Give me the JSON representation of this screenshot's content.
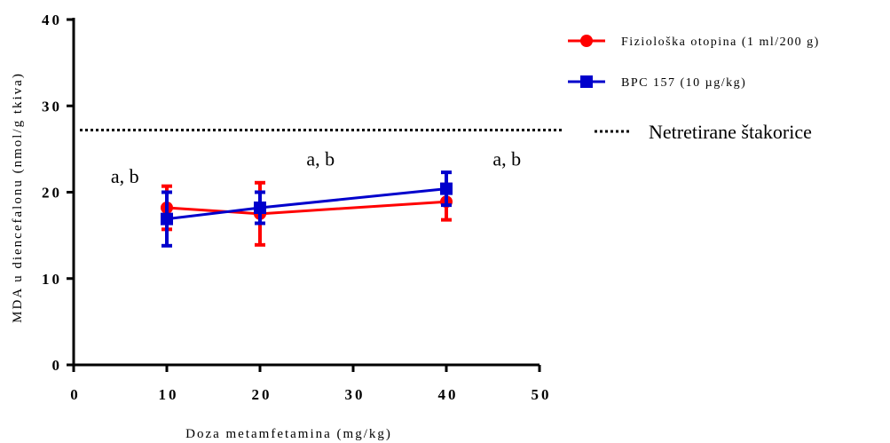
{
  "chart_data": {
    "type": "line",
    "title": "",
    "xlabel": "Doza metamfetamina (mg/kg)",
    "ylabel": "MDA u diencefalonu (nmol/g tkiva)",
    "xlim": [
      0,
      50
    ],
    "ylim": [
      0,
      40
    ],
    "xticks": [
      "0",
      "10",
      "20",
      "30",
      "40",
      "50"
    ],
    "yticks": [
      "0",
      "10",
      "20",
      "30",
      "40"
    ],
    "x": [
      10,
      20,
      40
    ],
    "series": [
      {
        "name": "Fiziološka otopina (1 ml/200 g)",
        "color": "#ff0000",
        "marker": "circle",
        "x": [
          10,
          20,
          40
        ],
        "values": [
          18.2,
          17.5,
          18.9
        ],
        "err_low": [
          15.7,
          13.9,
          16.8
        ],
        "err_high": [
          20.7,
          21.1,
          20.9
        ]
      },
      {
        "name": "BPC 157 (10 µg/kg)",
        "color": "#0000cc",
        "marker": "square",
        "x": [
          10,
          20,
          40
        ],
        "values": [
          16.9,
          18.2,
          20.4
        ],
        "err_low": [
          13.8,
          16.4,
          18.5
        ],
        "err_high": [
          20.0,
          20.0,
          22.3
        ]
      }
    ],
    "reference_line": {
      "label": "Netretirane štakorice",
      "value": 27.2,
      "style": "dotted"
    },
    "annotations": [
      {
        "text": "a, b",
        "x": 5.5,
        "y": 21.1
      },
      {
        "text": "a, b",
        "x": 26.5,
        "y": 23.1
      },
      {
        "text": "a, b",
        "x": 46.5,
        "y": 23.1
      }
    ],
    "legend_position": "top-right",
    "grid": false
  }
}
